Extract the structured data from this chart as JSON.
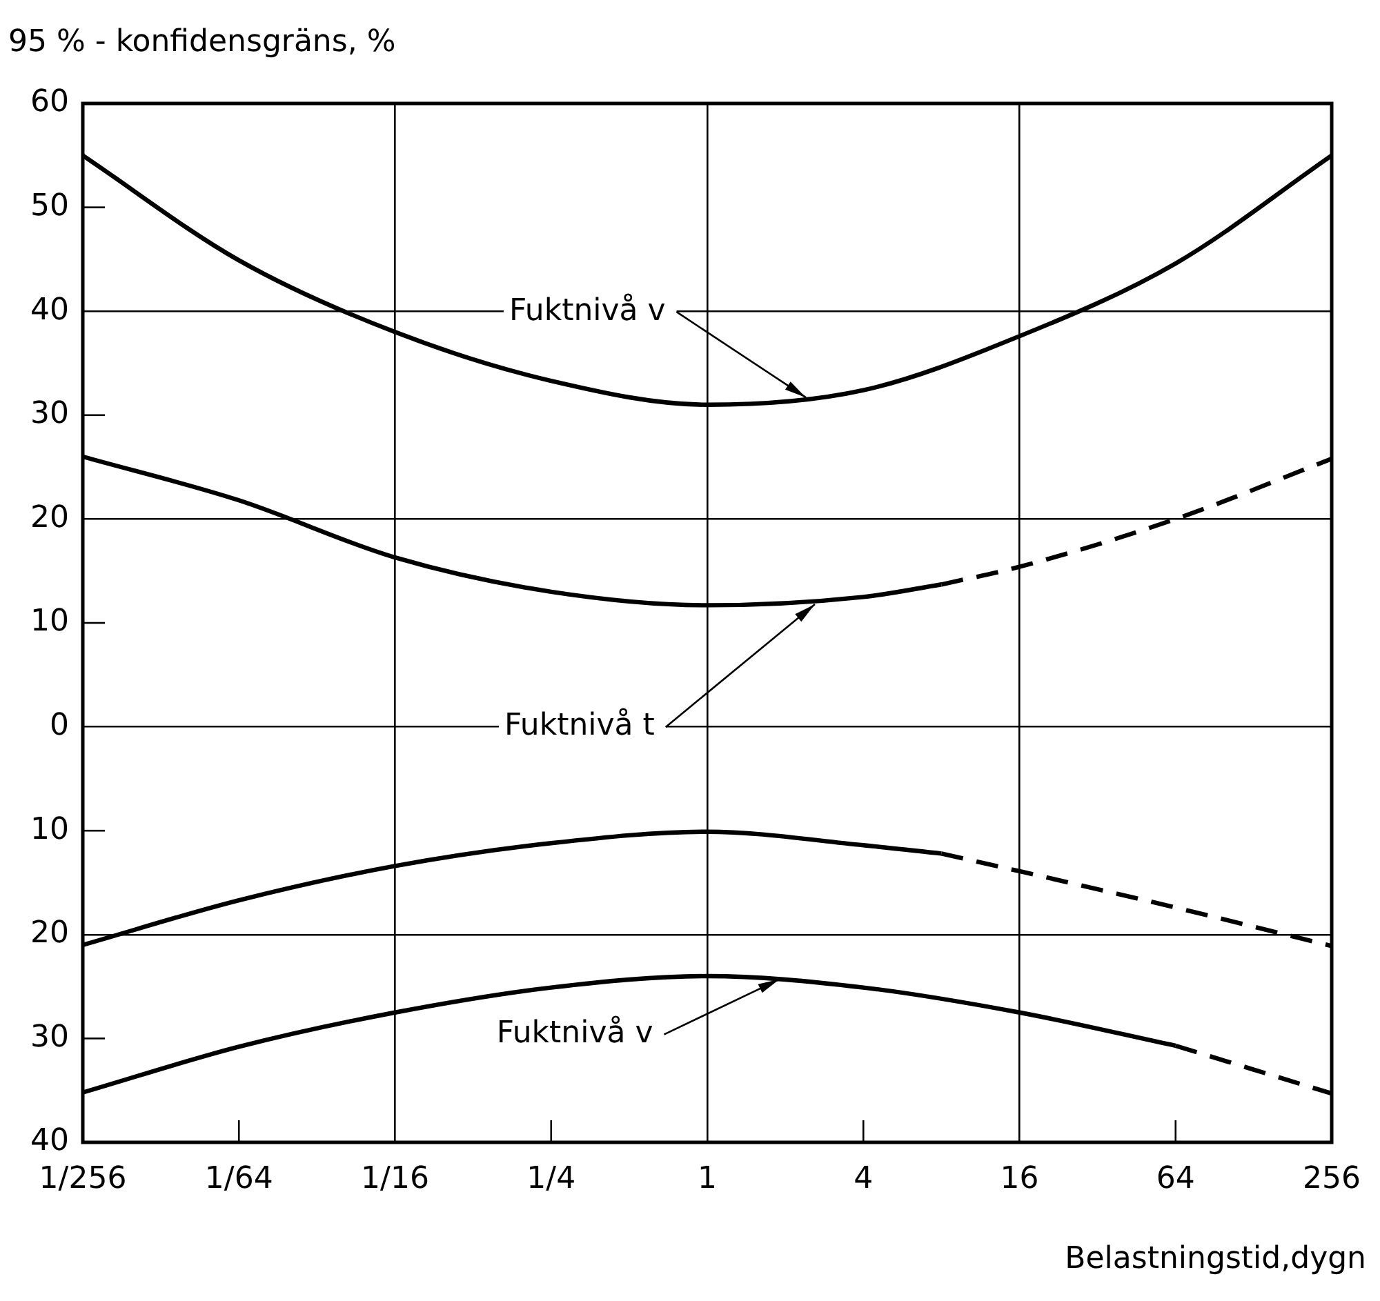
{
  "chart_data": {
    "type": "line",
    "ylabel": "95 % - konfidensgräns, %",
    "xlabel": "Belastningstid,dygn",
    "log": "x",
    "xlim": [
      0.00390625,
      256
    ],
    "xticks": [
      {
        "value": 0.00390625,
        "label": "1/256"
      },
      {
        "value": 0.015625,
        "label": "1/64"
      },
      {
        "value": 0.0625,
        "label": "1/16"
      },
      {
        "value": 0.25,
        "label": "1/4"
      },
      1,
      4,
      16,
      64,
      256
    ],
    "ylim": [
      -40,
      60
    ],
    "yticks": [
      {
        "value": -40,
        "label": "40"
      },
      {
        "value": -30,
        "label": "30"
      },
      {
        "value": -20,
        "label": "20"
      },
      {
        "value": -10,
        "label": "10"
      },
      0,
      10,
      20,
      30,
      40,
      50,
      60
    ],
    "grid": true,
    "legend": false,
    "marker": "none",
    "series": [
      {
        "color": "#000000",
        "line_style": "solid",
        "x": [
          0.00390625,
          0.015625,
          0.0625,
          0.25,
          1,
          4,
          16,
          64,
          256
        ],
        "values": [
          55,
          44.9,
          38,
          33.3,
          31,
          32.4,
          37.6,
          44.6,
          55
        ]
      },
      {
        "color": "#000000",
        "line_style": "solid",
        "x": [
          0.00390625,
          0.015625,
          0.0625,
          0.25,
          1,
          4,
          8
        ],
        "values": [
          26,
          21.8,
          16.3,
          13,
          11.7,
          12.5,
          13.7
        ]
      },
      {
        "color": "#000000",
        "line_style": "dashed",
        "x": [
          8,
          16,
          64,
          256
        ],
        "values": [
          13.7,
          15.4,
          20,
          25.8
        ]
      },
      {
        "color": "#000000",
        "line_style": "solid",
        "x": [
          0.00390625,
          0.015625,
          0.0625,
          0.25,
          1,
          4,
          8
        ],
        "values": [
          -21,
          -16.7,
          -13.4,
          -11.2,
          -10.1,
          -11.4,
          -12.2
        ]
      },
      {
        "color": "#000000",
        "line_style": "dashed",
        "x": [
          8,
          16,
          64,
          256
        ],
        "values": [
          -12.2,
          -13.9,
          -17.4,
          -21.1
        ]
      },
      {
        "color": "#000000",
        "line_style": "solid",
        "x": [
          0.00390625,
          0.015625,
          0.0625,
          0.25,
          1,
          4,
          16,
          64
        ],
        "values": [
          -35.2,
          -30.8,
          -27.5,
          -25.1,
          -24,
          -25.1,
          -27.5,
          -30.7
        ]
      },
      {
        "color": "#000000",
        "line_style": "dashed",
        "x": [
          64,
          128,
          256
        ],
        "values": [
          -30.7,
          -33,
          -35.3
        ]
      }
    ],
    "annotations": [
      {
        "text": "Fuktnivå v",
        "x": 2.4,
        "y": 31.7
      },
      {
        "text": "Fuktnivå t",
        "x": 2.6,
        "y": 11.8
      },
      {
        "text": "Fuktnivå v",
        "x": 1.9,
        "y": -24.3
      }
    ]
  }
}
